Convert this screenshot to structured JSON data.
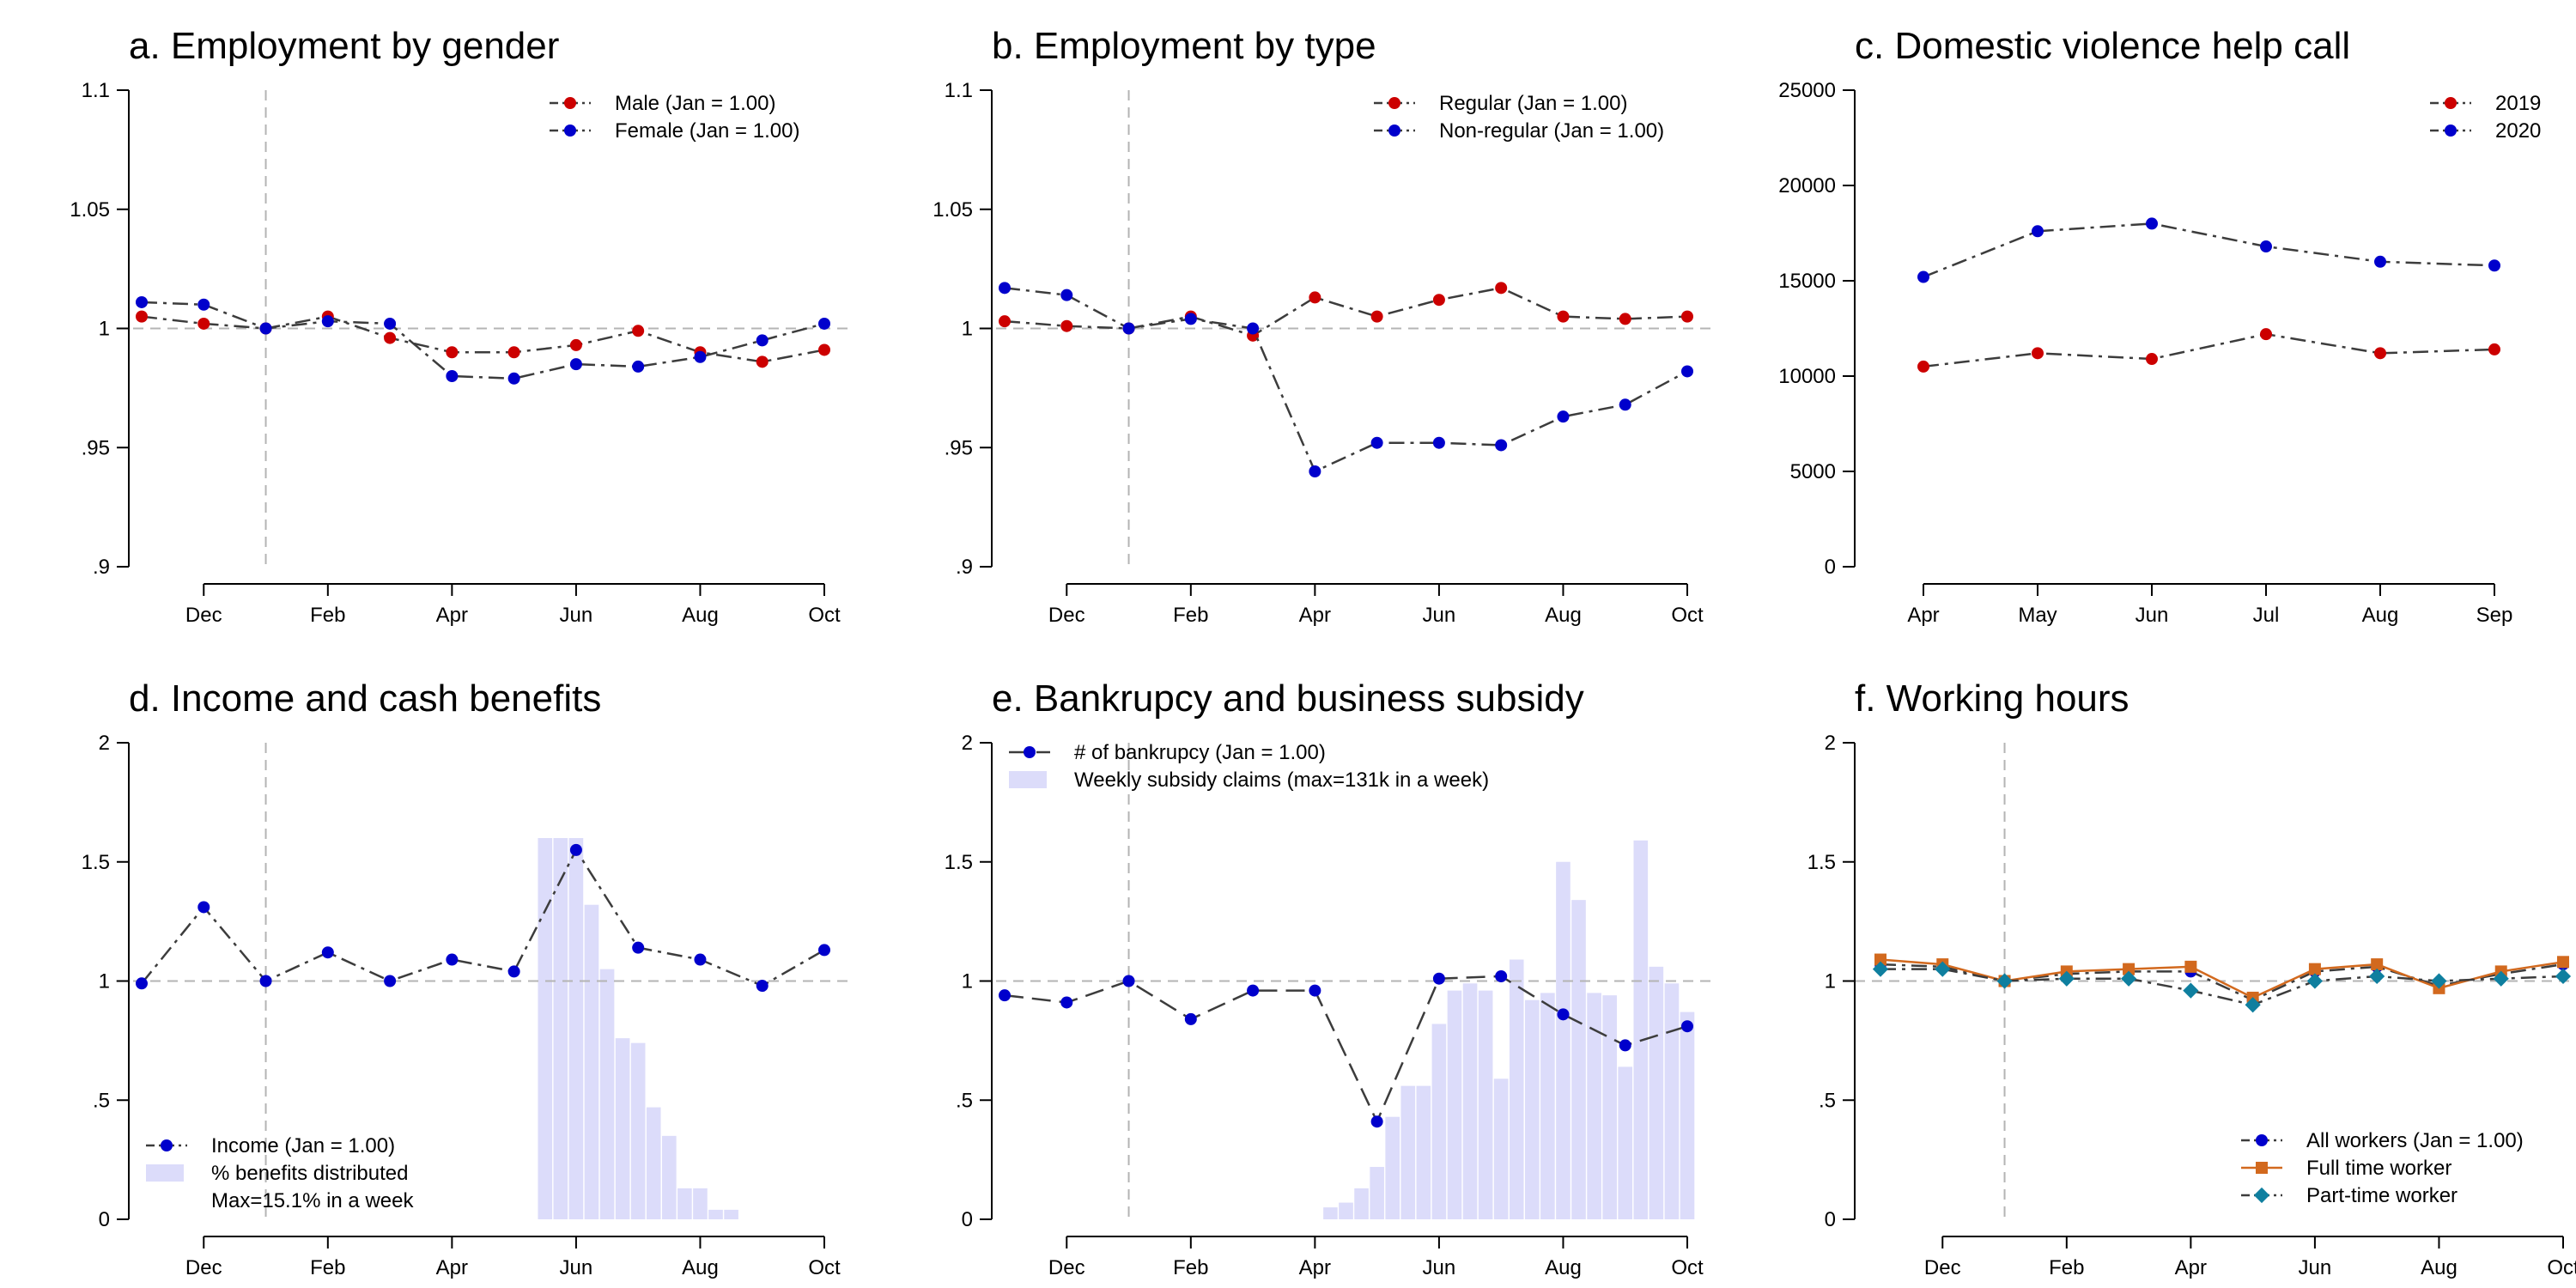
{
  "chart_data": [
    {
      "id": "a",
      "type": "line",
      "title": "a. Employment by gender",
      "ylim": [
        0.9,
        1.1
      ],
      "yticks": [
        0.9,
        0.95,
        1.0,
        1.05,
        1.1
      ],
      "ytick_labels": [
        ".9",
        ".95",
        "1",
        "1.05",
        "1.1"
      ],
      "xlim": [
        11,
        22
      ],
      "xticks": [
        12,
        14,
        16,
        18,
        20,
        22
      ],
      "xtick_labels": [
        "Dec",
        "Feb",
        "Apr",
        "Jun",
        "Aug",
        "Oct"
      ],
      "vline_x": 13,
      "hline_y": 1.0,
      "legend_position": "top-right",
      "series": [
        {
          "name": "Male (Jan = 1.00)",
          "color": "#cc0000",
          "marker": "circle",
          "line": "dashdot",
          "x": [
            11,
            12,
            13,
            14,
            15,
            16,
            17,
            18,
            19,
            20,
            21,
            22
          ],
          "y": [
            1.005,
            1.002,
            1.0,
            1.005,
            0.996,
            0.99,
            0.99,
            0.993,
            0.999,
            0.99,
            0.986,
            0.991
          ]
        },
        {
          "name": "Female (Jan = 1.00)",
          "color": "#0000cc",
          "marker": "circle",
          "line": "dashdot",
          "x": [
            11,
            12,
            13,
            14,
            15,
            16,
            17,
            18,
            19,
            20,
            21,
            22
          ],
          "y": [
            1.011,
            1.01,
            1.0,
            1.003,
            1.002,
            0.98,
            0.979,
            0.985,
            0.984,
            0.988,
            0.995,
            1.002
          ]
        }
      ]
    },
    {
      "id": "b",
      "type": "line",
      "title": "b. Employment by type",
      "ylim": [
        0.9,
        1.1
      ],
      "yticks": [
        0.9,
        0.95,
        1.0,
        1.05,
        1.1
      ],
      "ytick_labels": [
        ".9",
        ".95",
        "1",
        "1.05",
        "1.1"
      ],
      "xlim": [
        11,
        22
      ],
      "xticks": [
        12,
        14,
        16,
        18,
        20,
        22
      ],
      "xtick_labels": [
        "Dec",
        "Feb",
        "Apr",
        "Jun",
        "Aug",
        "Oct"
      ],
      "vline_x": 13,
      "hline_y": 1.0,
      "legend_position": "top-right",
      "series": [
        {
          "name": "Regular (Jan = 1.00)",
          "color": "#cc0000",
          "marker": "circle",
          "line": "dashdot",
          "x": [
            11,
            12,
            13,
            14,
            15,
            16,
            17,
            18,
            19,
            20,
            21,
            22
          ],
          "y": [
            1.003,
            1.001,
            1.0,
            1.005,
            0.997,
            1.013,
            1.005,
            1.012,
            1.017,
            1.005,
            1.004,
            1.005
          ]
        },
        {
          "name": "Non-regular (Jan = 1.00)",
          "color": "#0000cc",
          "marker": "circle",
          "line": "dashdot",
          "x": [
            11,
            12,
            13,
            14,
            15,
            16,
            17,
            18,
            19,
            20,
            21,
            22
          ],
          "y": [
            1.017,
            1.014,
            1.0,
            1.004,
            1.0,
            0.94,
            0.952,
            0.952,
            0.951,
            0.963,
            0.968,
            0.982
          ]
        }
      ]
    },
    {
      "id": "c",
      "type": "line",
      "title": "c. Domestic violence help call",
      "ylim": [
        0,
        25000
      ],
      "yticks": [
        0,
        5000,
        10000,
        15000,
        20000,
        25000
      ],
      "ytick_labels": [
        "0",
        "5000",
        "10000",
        "15000",
        "20000",
        "25000"
      ],
      "xlim": [
        4,
        9
      ],
      "xticks": [
        4,
        5,
        6,
        7,
        8,
        9
      ],
      "xtick_labels": [
        "Apr",
        "May",
        "Jun",
        "Jul",
        "Aug",
        "Sep"
      ],
      "legend_position": "top-right",
      "series": [
        {
          "name": "2019",
          "color": "#cc0000",
          "marker": "circle",
          "line": "dashdot",
          "x": [
            4,
            5,
            6,
            7,
            8,
            9
          ],
          "y": [
            10500,
            11200,
            10900,
            12200,
            11200,
            11400
          ]
        },
        {
          "name": "2020",
          "color": "#0000cc",
          "marker": "circle",
          "line": "dashdot",
          "x": [
            4,
            5,
            6,
            7,
            8,
            9
          ],
          "y": [
            15200,
            17600,
            18000,
            16800,
            16000,
            15800
          ]
        }
      ]
    },
    {
      "id": "d",
      "type": "bar",
      "title": "d. Income and cash benefits",
      "ylim": [
        0,
        2
      ],
      "yticks": [
        0,
        0.5,
        1,
        1.5,
        2
      ],
      "ytick_labels": [
        "0",
        ".5",
        "1",
        "1.5",
        "2"
      ],
      "xlim": [
        11,
        22
      ],
      "xticks": [
        12,
        14,
        16,
        18,
        20,
        22
      ],
      "xtick_labels": [
        "Dec",
        "Feb",
        "Apr",
        "Jun",
        "Aug",
        "Oct"
      ],
      "vline_x": 13,
      "hline_y": 1.0,
      "legend_position": "bottom-left",
      "bars": {
        "name": "% benefits distributed",
        "name_line2": "Max=15.1% in a week",
        "color": "#dcdcfa",
        "width": 0.23,
        "x": [
          17.5,
          17.75,
          18.0,
          18.25,
          18.5,
          18.75,
          19.0,
          19.25,
          19.5,
          19.75,
          20.0,
          20.25,
          20.5,
          20.75
        ],
        "y": [
          1.6,
          1.6,
          1.6,
          1.32,
          1.05,
          0.76,
          0.74,
          0.47,
          0.35,
          0.13,
          0.13,
          0.04,
          0.04,
          0.0
        ]
      },
      "series": [
        {
          "name": "Income (Jan = 1.00)",
          "color": "#0000cc",
          "marker": "circle",
          "line": "dashdot",
          "x": [
            11,
            12,
            13,
            14,
            15,
            16,
            17,
            18,
            19,
            20,
            21,
            22
          ],
          "y": [
            0.99,
            1.31,
            1.0,
            1.12,
            1.0,
            1.09,
            1.04,
            1.55,
            1.14,
            1.09,
            0.98,
            1.13
          ]
        }
      ]
    },
    {
      "id": "e",
      "type": "bar",
      "title": "e. Bankrupcy and business subsidy",
      "ylim": [
        0,
        2
      ],
      "yticks": [
        0,
        0.5,
        1,
        1.5,
        2
      ],
      "ytick_labels": [
        "0",
        ".5",
        "1",
        "1.5",
        "2"
      ],
      "xlim": [
        11,
        22
      ],
      "xticks": [
        12,
        14,
        16,
        18,
        20,
        22
      ],
      "xtick_labels": [
        "Dec",
        "Feb",
        "Apr",
        "Jun",
        "Aug",
        "Oct"
      ],
      "vline_x": 13,
      "hline_y": 1.0,
      "legend_position": "top-left",
      "bars": {
        "name": "Weekly subsidy claims (max=131k in a week)",
        "color": "#dcdcfa",
        "width": 0.23,
        "x": [
          16.25,
          16.5,
          16.75,
          17.0,
          17.25,
          17.5,
          17.75,
          18.0,
          18.25,
          18.5,
          18.75,
          19.0,
          19.25,
          19.5,
          19.75,
          20.0,
          20.25,
          20.5,
          20.75,
          21.0,
          21.25,
          21.5,
          21.75,
          22.0
        ],
        "y": [
          0.05,
          0.07,
          0.13,
          0.22,
          0.43,
          0.56,
          0.56,
          0.82,
          0.96,
          0.99,
          0.96,
          0.59,
          1.09,
          0.92,
          0.95,
          1.5,
          1.34,
          0.95,
          0.94,
          0.64,
          1.59,
          1.06,
          0.99,
          0.87
        ]
      },
      "series": [
        {
          "name": "# of bankrupcy (Jan = 1.00)",
          "color": "#0000cc",
          "marker": "circle",
          "line": "dash",
          "x": [
            11,
            12,
            13,
            14,
            15,
            16,
            17,
            18,
            19,
            20,
            21,
            22
          ],
          "y": [
            0.94,
            0.91,
            1.0,
            0.84,
            0.96,
            0.96,
            0.41,
            1.01,
            1.02,
            0.86,
            0.73,
            0.81
          ]
        }
      ]
    },
    {
      "id": "f",
      "type": "line",
      "title": "f. Working hours",
      "ylim": [
        0,
        2
      ],
      "yticks": [
        0,
        0.5,
        1,
        1.5,
        2
      ],
      "ytick_labels": [
        "0",
        ".5",
        "1",
        "1.5",
        "2"
      ],
      "xlim": [
        11,
        22
      ],
      "xticks": [
        12,
        14,
        16,
        18,
        20,
        22
      ],
      "xtick_labels": [
        "Dec",
        "Feb",
        "Apr",
        "Jun",
        "Aug",
        "Oct"
      ],
      "vline_x": 13,
      "hline_y": 1.0,
      "legend_position": "bottom-right",
      "series": [
        {
          "name": "All workers (Jan = 1.00)",
          "color": "#0000cc",
          "marker": "circle",
          "line": "dashdot",
          "x": [
            11,
            12,
            13,
            14,
            15,
            16,
            17,
            18,
            19,
            20,
            21,
            22
          ],
          "y": [
            1.07,
            1.06,
            1.0,
            1.03,
            1.04,
            1.04,
            0.92,
            1.04,
            1.06,
            0.98,
            1.03,
            1.07
          ]
        },
        {
          "name": "Full time worker",
          "color": "#d2691e",
          "marker": "square",
          "line": "solid",
          "x": [
            11,
            12,
            13,
            14,
            15,
            16,
            17,
            18,
            19,
            20,
            21,
            22
          ],
          "y": [
            1.09,
            1.07,
            1.0,
            1.04,
            1.05,
            1.06,
            0.93,
            1.05,
            1.07,
            0.97,
            1.04,
            1.08
          ]
        },
        {
          "name": "Part-time worker",
          "color": "#0f7f9f",
          "marker": "diamond",
          "line": "dashdot",
          "x": [
            11,
            12,
            13,
            14,
            15,
            16,
            17,
            18,
            19,
            20,
            21,
            22
          ],
          "y": [
            1.05,
            1.05,
            1.0,
            1.01,
            1.01,
            0.96,
            0.9,
            1.0,
            1.02,
            1.0,
            1.01,
            1.02
          ]
        }
      ]
    }
  ]
}
